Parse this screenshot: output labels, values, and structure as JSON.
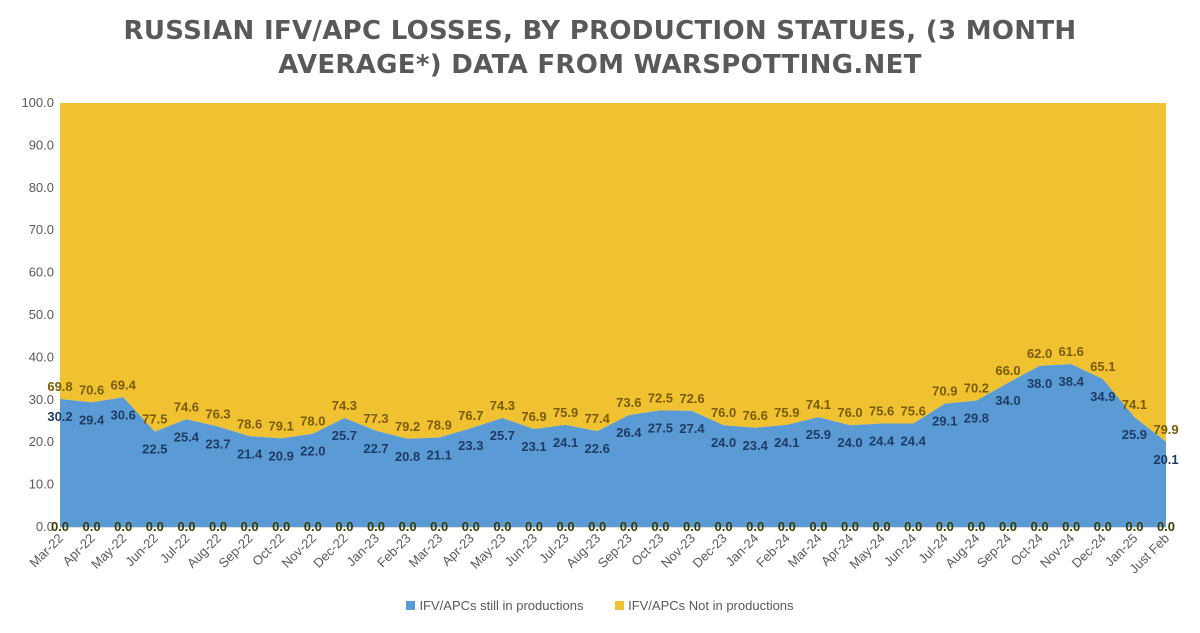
{
  "chart_data": {
    "type": "area",
    "title_lines": [
      "RUSSIAN IFV/APC LOSSES, BY PRODUCTION STATUES, (3 MONTH",
      "AVERAGE*) DATA FROM WARSPOTTING.NET"
    ],
    "categories": [
      "Mar-22",
      "Apr-22",
      "May-22",
      "Jun-22",
      "Jul-22",
      "Aug-22",
      "Sep-22",
      "Oct-22",
      "Nov-22",
      "Dec-22",
      "Jan-23",
      "Feb-23",
      "Mar-23",
      "Apr-23",
      "May-23",
      "Jun-23",
      "Jul-23",
      "Aug-23",
      "Sep-23",
      "Oct-23",
      "Nov-23",
      "Dec-23",
      "Jan-24",
      "Feb-24",
      "Mar-24",
      "Apr-24",
      "May-24",
      "Jun-24",
      "Jul-24",
      "Aug-24",
      "Sep-24",
      "Oct-24",
      "Nov-24",
      "Dec-24",
      "Jan-25",
      "Just Feb"
    ],
    "series": [
      {
        "name": "IFV/APCs still in productions",
        "color": "#5b9bd5",
        "values": [
          30.2,
          29.4,
          30.6,
          22.5,
          25.4,
          23.7,
          21.4,
          20.9,
          22.0,
          25.7,
          22.7,
          20.8,
          21.1,
          23.3,
          25.7,
          23.1,
          24.1,
          22.6,
          26.4,
          27.5,
          27.4,
          24.0,
          23.4,
          24.1,
          25.9,
          24.0,
          24.4,
          24.4,
          29.1,
          29.8,
          34.0,
          38.0,
          38.4,
          34.9,
          25.9,
          20.1
        ]
      },
      {
        "name": "IFV/APCs Not in productions",
        "color": "#f0c232",
        "values": [
          69.8,
          70.6,
          69.4,
          77.5,
          74.6,
          76.3,
          78.6,
          79.1,
          78.0,
          74.3,
          77.3,
          79.2,
          78.9,
          76.7,
          74.3,
          76.9,
          75.9,
          77.4,
          73.6,
          72.5,
          72.6,
          76.0,
          76.6,
          75.9,
          74.1,
          76.0,
          75.6,
          75.6,
          70.9,
          70.2,
          66.0,
          62.0,
          61.6,
          65.1,
          74.1,
          79.9
        ]
      }
    ],
    "baseline_label": "0.0",
    "y_ticks": [
      "0.0",
      "10.0",
      "20.0",
      "30.0",
      "40.0",
      "50.0",
      "60.0",
      "70.0",
      "80.0",
      "90.0",
      "100.0"
    ],
    "ylim": [
      0,
      100
    ],
    "stacked": true,
    "grid": false,
    "legend_position": "bottom"
  }
}
